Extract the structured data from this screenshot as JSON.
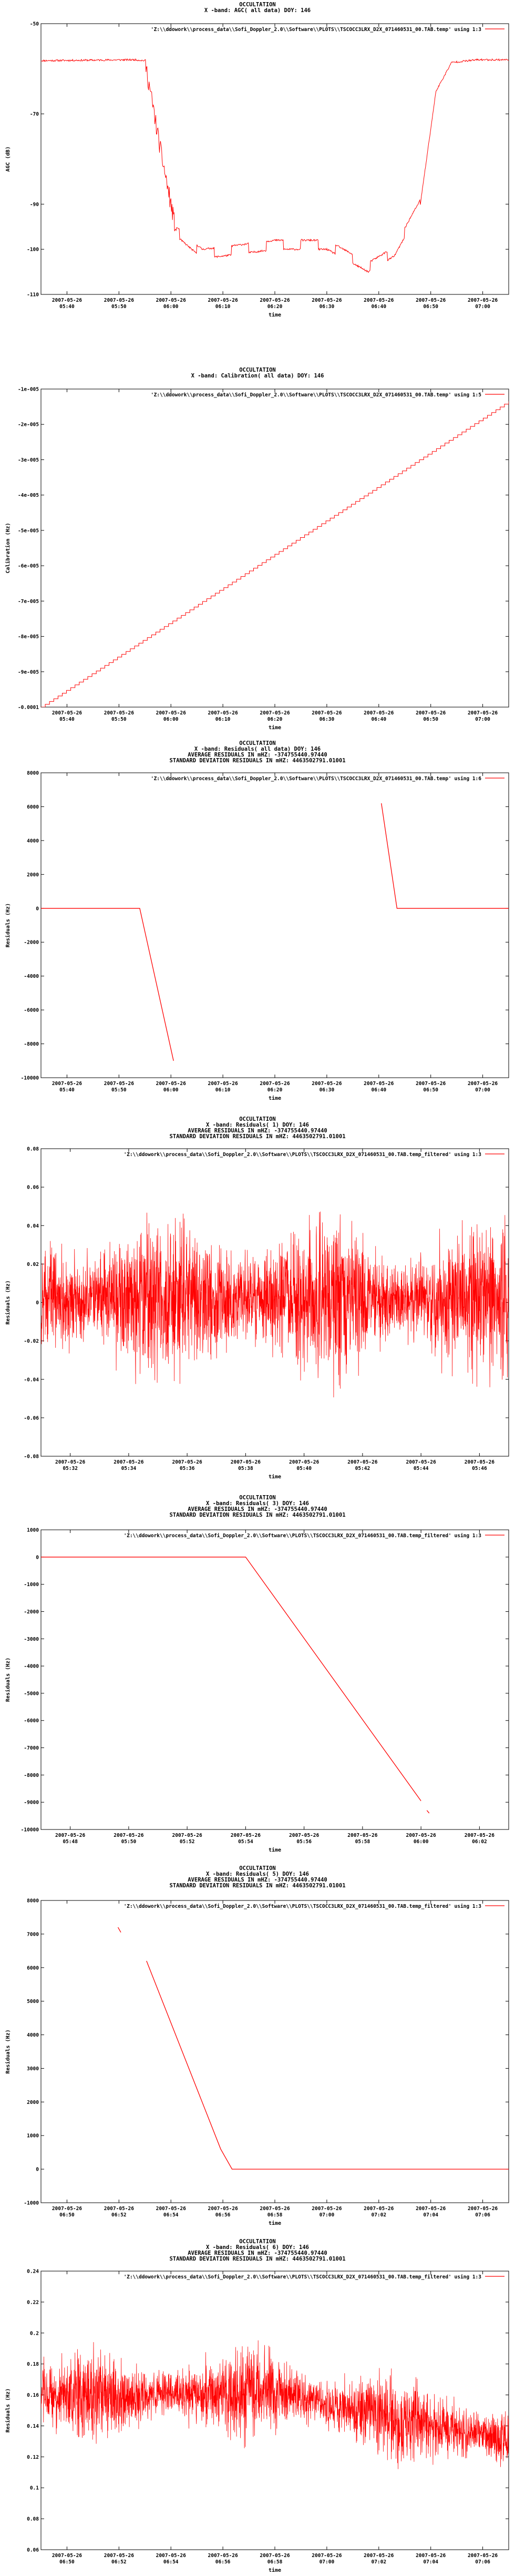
{
  "chart_data": [
    {
      "type": "line",
      "title": [
        "OCCULTATION",
        "X -band: AGC( all data) DOY: 146"
      ],
      "xlabel": "time",
      "ylabel": "AGC (dB)",
      "legend": "'Z:\\\\ddowork\\\\process_data\\\\Sofi_Doppler_2.0\\\\Software\\\\PLOTS\\\\TSCOCC3LRX_D2X_071460531_00.TAB.temp' using 1:3",
      "xticks": [
        "2007-05-26\n05:40",
        "2007-05-26\n05:50",
        "2007-05-26\n06:00",
        "2007-05-26\n06:10",
        "2007-05-26\n06:20",
        "2007-05-26\n06:30",
        "2007-05-26\n06:40",
        "2007-05-26\n06:50",
        "2007-05-26\n07:00"
      ],
      "xlim": [
        0,
        9
      ],
      "yticks": [
        "-50",
        "-70",
        "-90",
        "-100",
        "-110"
      ],
      "ytick_values": [
        -50,
        -70,
        -90,
        -100,
        -110
      ],
      "ylim": [
        -110,
        -50
      ],
      "gen": "agc",
      "x": [
        0,
        1.8,
        2.0,
        2.3,
        2.6,
        3.1,
        3.5,
        4.5,
        5.5,
        6.3,
        6.8,
        7.3,
        7.6,
        7.9,
        8.4,
        9.0
      ],
      "y": [
        -58.2,
        -58.0,
        -58.2,
        -78.0,
        -96.0,
        -101.0,
        -100.5,
        -99.0,
        -99.0,
        -104.0,
        -100.5,
        -90.0,
        -65.0,
        -58.6,
        -58.0,
        -58.0
      ]
    },
    {
      "type": "line",
      "title": [
        "OCCULTATION",
        "X -band: Calibration( all data) DOY: 146"
      ],
      "xlabel": "time",
      "ylabel": "Calibration (Hz)",
      "legend": "'Z:\\\\ddowork\\\\process_data\\\\Sofi_Doppler_2.0\\\\Software\\\\PLOTS\\\\TSCOCC3LRX_D2X_071460531_00.TAB.temp' using 1:5",
      "xticks": [
        "2007-05-26\n05:40",
        "2007-05-26\n05:50",
        "2007-05-26\n06:00",
        "2007-05-26\n06:10",
        "2007-05-26\n06:20",
        "2007-05-26\n06:30",
        "2007-05-26\n06:40",
        "2007-05-26\n06:50",
        "2007-05-26\n07:00"
      ],
      "xlim": [
        0,
        9
      ],
      "yticks": [
        "-1e-005",
        "-2e-005",
        "-3e-005",
        "-4e-005",
        "-5e-005",
        "-6e-005",
        "-7e-005",
        "-8e-005",
        "-9e-005",
        "-0.0001"
      ],
      "ytick_values": [
        -1e-05,
        -2e-05,
        -3e-05,
        -4e-05,
        -5e-05,
        -6e-05,
        -7e-05,
        -8e-05,
        -9e-05,
        -0.0001
      ],
      "ylim": [
        -0.0001,
        -1e-05
      ],
      "gen": "stair",
      "x": [
        0,
        9
      ],
      "y": [
        -0.0001,
        -1.35e-05
      ]
    },
    {
      "type": "line",
      "title": [
        "OCCULTATION",
        "X -band: Residuals( all data) DOY: 146",
        "AVERAGE RESIDUALS IN mHZ: -374755440.97440",
        "STANDARD DEVIATION RESIDUALS IN mHZ: 4463502791.01001"
      ],
      "xlabel": "time",
      "ylabel": "Residuals (Hz)",
      "legend": "'Z:\\\\ddowork\\\\process_data\\\\Sofi_Doppler_2.0\\\\Software\\\\PLOTS\\\\TSCOCC3LRX_D2X_071460531_00.TAB.temp' using 1:6",
      "xticks": [
        "2007-05-26\n05:40",
        "2007-05-26\n05:50",
        "2007-05-26\n06:00",
        "2007-05-26\n06:10",
        "2007-05-26\n06:20",
        "2007-05-26\n06:30",
        "2007-05-26\n06:40",
        "2007-05-26\n06:50",
        "2007-05-26\n07:00"
      ],
      "xlim": [
        0,
        9
      ],
      "yticks": [
        "8000",
        "6000",
        "4000",
        "2000",
        "0",
        "-2000",
        "-4000",
        "-6000",
        "-8000",
        "-10000"
      ],
      "ytick_values": [
        8000,
        6000,
        4000,
        2000,
        0,
        -2000,
        -4000,
        -6000,
        -8000,
        -10000
      ],
      "ylim": [
        -10000,
        8000
      ],
      "gen": "segments",
      "segments": [
        {
          "x": [
            0,
            1.9,
            2.55
          ],
          "y": [
            0,
            0,
            -9000
          ]
        },
        {
          "x": [
            6.55,
            6.85,
            9.0
          ],
          "y": [
            6200,
            0,
            0
          ]
        }
      ]
    },
    {
      "type": "line",
      "title": [
        "OCCULTATION",
        "X -band: Residuals( 1) DOY: 146",
        "AVERAGE RESIDUALS IN mHZ: -374755440.97440",
        "STANDARD DEVIATION RESIDUALS IN mHZ: 4463502791.01001"
      ],
      "xlabel": "time",
      "ylabel": "Residuals (Hz)",
      "legend": "'Z:\\\\ddowork\\\\process_data\\\\Sofi_Doppler_2.0\\\\Software\\\\PLOTS\\\\TSCOCC3LRX_D2X_071460531_00.TAB.temp_filtered' using 1:3",
      "xticks": [
        "2007-05-26\n05:32",
        "2007-05-26\n05:34",
        "2007-05-26\n05:36",
        "2007-05-26\n05:38",
        "2007-05-26\n05:40",
        "2007-05-26\n05:42",
        "2007-05-26\n05:44",
        "2007-05-26\n05:46"
      ],
      "xlim": [
        0,
        8
      ],
      "yticks": [
        "0.08",
        "0.06",
        "0.04",
        "0.02",
        "0",
        "-0.02",
        "-0.04",
        "-0.06",
        "-0.08"
      ],
      "ytick_values": [
        0.08,
        0.06,
        0.04,
        0.02,
        0,
        -0.02,
        -0.04,
        -0.06,
        -0.08
      ],
      "ylim": [
        -0.08,
        0.08
      ],
      "gen": "noise",
      "x": [
        0,
        8
      ],
      "y": [
        0.002,
        0.002
      ],
      "noise_amplitude": 0.058
    },
    {
      "type": "line",
      "title": [
        "OCCULTATION",
        "X -band: Residuals( 3) DOY: 146",
        "AVERAGE RESIDUALS IN mHZ: -374755440.97440",
        "STANDARD DEVIATION RESIDUALS IN mHZ: 4463502791.01001"
      ],
      "xlabel": "time",
      "ylabel": "Residuals (Hz)",
      "legend": "'Z:\\\\ddowork\\\\process_data\\\\Sofi_Doppler_2.0\\\\Software\\\\PLOTS\\\\TSCOCC3LRX_D2X_071460531_00.TAB.temp_filtered' using 1:3",
      "xticks": [
        "2007-05-26\n05:48",
        "2007-05-26\n05:50",
        "2007-05-26\n05:52",
        "2007-05-26\n05:54",
        "2007-05-26\n05:56",
        "2007-05-26\n05:58",
        "2007-05-26\n06:00",
        "2007-05-26\n06:02"
      ],
      "xlim": [
        0,
        8
      ],
      "yticks": [
        "1000",
        "0",
        "-1000",
        "-2000",
        "-3000",
        "-4000",
        "-5000",
        "-6000",
        "-7000",
        "-8000",
        "-9000",
        "-10000"
      ],
      "ytick_values": [
        1000,
        0,
        -1000,
        -2000,
        -3000,
        -4000,
        -5000,
        -6000,
        -7000,
        -8000,
        -9000,
        -10000
      ],
      "ylim": [
        -10000,
        1000
      ],
      "gen": "segments",
      "segments": [
        {
          "x": [
            0,
            3.5,
            6.5
          ],
          "y": [
            0,
            0,
            -8950
          ]
        },
        {
          "x": [
            6.6,
            6.64
          ],
          "y": [
            -9300,
            -9400
          ]
        }
      ]
    },
    {
      "type": "line",
      "title": [
        "OCCULTATION",
        "X -band: Residuals( 5) DOY: 146",
        "AVERAGE RESIDUALS IN mHZ: -374755440.97440",
        "STANDARD DEVIATION RESIDUALS IN mHZ: 4463502791.01001"
      ],
      "xlabel": "time",
      "ylabel": "Residuals (Hz)",
      "legend": "'Z:\\\\ddowork\\\\process_data\\\\Sofi_Doppler_2.0\\\\Software\\\\PLOTS\\\\TSCOCC3LRX_D2X_071460531_00.TAB.temp_filtered' using 1:3",
      "xticks": [
        "2007-05-26\n06:50",
        "2007-05-26\n06:52",
        "2007-05-26\n06:54",
        "2007-05-26\n06:56",
        "2007-05-26\n06:58",
        "2007-05-26\n07:00",
        "2007-05-26\n07:02",
        "2007-05-26\n07:04",
        "2007-05-26\n07:06"
      ],
      "xlim": [
        0,
        8.2
      ],
      "yticks": [
        "8000",
        "7000",
        "6000",
        "5000",
        "4000",
        "3000",
        "2000",
        "1000",
        "0",
        "-1000"
      ],
      "ytick_values": [
        8000,
        7000,
        6000,
        5000,
        4000,
        3000,
        2000,
        1000,
        0,
        -1000
      ],
      "ylim": [
        -1000,
        8000
      ],
      "gen": "segments",
      "segments": [
        {
          "x": [
            1.35,
            1.4
          ],
          "y": [
            7200,
            7050
          ]
        },
        {
          "x": [
            1.85,
            3.15,
            3.35,
            8.2
          ],
          "y": [
            6200,
            600,
            0,
            0
          ]
        }
      ]
    },
    {
      "type": "line",
      "title": [
        "OCCULTATION",
        "X -band: Residuals( 6) DOY: 146",
        "AVERAGE RESIDUALS IN mHZ: -374755440.97440",
        "STANDARD DEVIATION RESIDUALS IN mHZ: 4463502791.01001"
      ],
      "xlabel": "time",
      "ylabel": "Residuals (Hz)",
      "legend": "'Z:\\\\ddowork\\\\process_data\\\\Sofi_Doppler_2.0\\\\Software\\\\PLOTS\\\\TSCOCC3LRX_D2X_071460531_00.TAB.temp_filtered' using 1:3",
      "xticks": [
        "2007-05-26\n06:50",
        "2007-05-26\n06:52",
        "2007-05-26\n06:54",
        "2007-05-26\n06:56",
        "2007-05-26\n06:58",
        "2007-05-26\n07:00",
        "2007-05-26\n07:02",
        "2007-05-26\n07:04",
        "2007-05-26\n07:06"
      ],
      "xlim": [
        0,
        8.2
      ],
      "yticks": [
        "0.24",
        "0.22",
        "0.2",
        "0.18",
        "0.16",
        "0.14",
        "0.12",
        "0.1",
        "0.08",
        "0.06"
      ],
      "ytick_values": [
        0.24,
        0.22,
        0.2,
        0.18,
        0.16,
        0.14,
        0.12,
        0.1,
        0.08,
        0.06
      ],
      "ylim": [
        0.06,
        0.24
      ],
      "gen": "noise",
      "x": [
        0,
        4.0,
        8.2
      ],
      "y": [
        0.158,
        0.162,
        0.13
      ],
      "noise_amplitude": 0.04
    }
  ],
  "colors": {
    "series": "#ff0000",
    "axis": "#000000",
    "background": "#ffffff"
  }
}
